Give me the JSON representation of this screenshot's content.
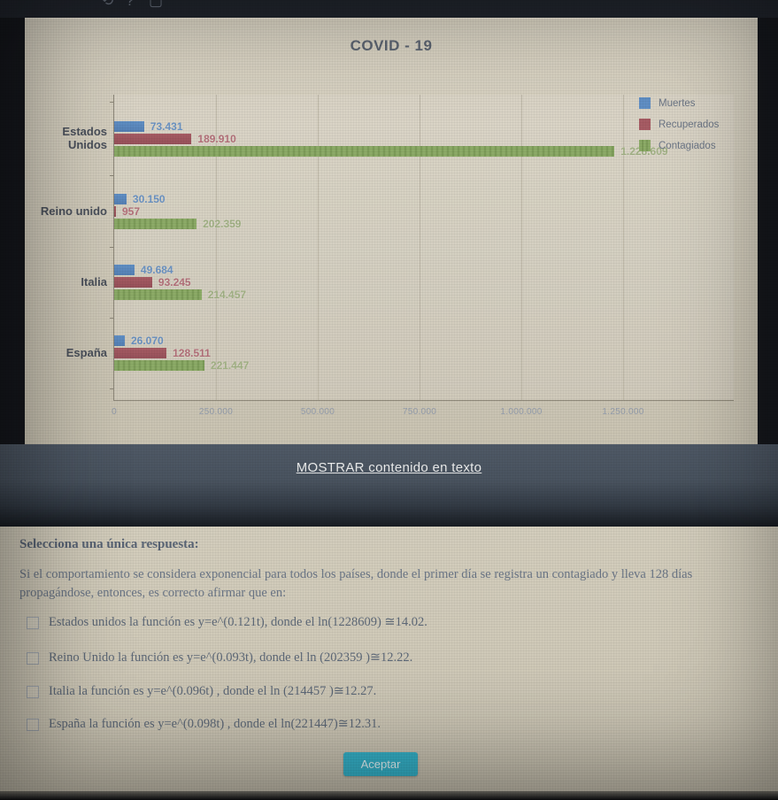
{
  "top_bar": {
    "icons": [
      {
        "name": "refresh-icon",
        "glyph": "⟲"
      },
      {
        "name": "help-icon",
        "glyph": "?"
      },
      {
        "name": "window-icon",
        "glyph": "▢"
      }
    ]
  },
  "chart": {
    "title": "COVID - 19"
  },
  "chart_data": {
    "type": "bar",
    "orientation": "horizontal",
    "title": "COVID - 19",
    "categories": [
      "Estados Unidos",
      "Reino unido",
      "Italia",
      "España"
    ],
    "series": [
      {
        "name": "Muertes",
        "color": "#6190c6",
        "color_dark": "#5681b5",
        "label_color": "#6a92c2",
        "values": [
          73431,
          30150,
          49684,
          26070
        ],
        "display": [
          "73.431",
          "30.150",
          "49.684",
          "26.070"
        ]
      },
      {
        "name": "Recuperados",
        "color": "#a75c64",
        "color_dark": "#97515a",
        "label_color": "#b4707a",
        "values": [
          189910,
          957,
          93245,
          128511
        ],
        "display": [
          "189.910",
          "957",
          "93.245",
          "128.511"
        ]
      },
      {
        "name": "Contagiados",
        "color": "#8cab67",
        "color_dark": "#7c9b58",
        "label_color": "#a2b285",
        "values": [
          1228609,
          202359,
          214457,
          221447
        ],
        "display": [
          "1.228.609",
          "202.359",
          "214.457",
          "221.447"
        ]
      }
    ],
    "x_ticks": [
      "0",
      "250.000",
      "500.000",
      "750.000",
      "1.000.000",
      "1.250.000"
    ],
    "xlim": [
      0,
      1250000
    ],
    "grid": true,
    "legend_position": "top-right"
  },
  "show_link": {
    "label": "MOSTRAR contenido en texto"
  },
  "question": {
    "prompt_heading": "Selecciona una única respuesta:",
    "prompt_body": "Si el comportamiento se considera exponencial para todos los países, donde el primer día se registra un contagiado y lleva 128 días propagándose, entonces, es correcto afirmar que en:",
    "options": [
      {
        "text": "Estados unidos la función es y=e^(0.121t), donde el ln(1228609) ≅14.02."
      },
      {
        "text": "Reino Unido la función es y=e^(0.093t), donde el ln (202359 )≅12.22."
      },
      {
        "text": "Italia la función es y=e^(0.096t) , donde el ln (214457 )≅12.27."
      },
      {
        "text": "España la función es y=e^(0.098t) , donde el ln(221447)≅12.31."
      }
    ],
    "accept_label": "Aceptar"
  }
}
